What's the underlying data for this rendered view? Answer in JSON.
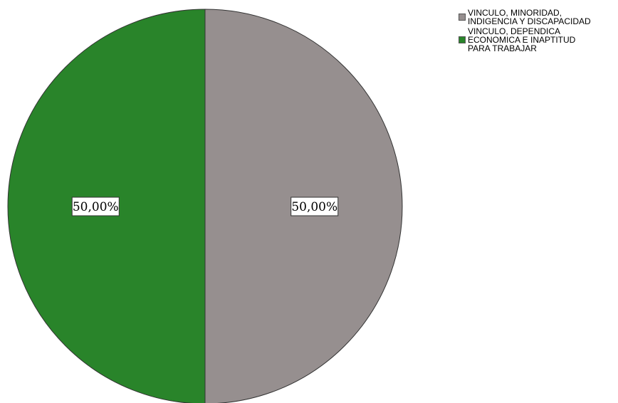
{
  "chart_data": {
    "type": "pie",
    "title": "",
    "slices": [
      {
        "label": "VINCULO, MINORIDAD,\nINDIGENCIA Y DISCAPACIDAD",
        "value": 50.0,
        "display": "50,00%",
        "color": "#968f8f"
      },
      {
        "label": "VINCULO, DEPENDICA\nECONOMICA E INAPTITUD\nPARA TRABAJAR",
        "value": 50.0,
        "display": "50,00%",
        "color": "#29842a"
      }
    ],
    "legend_position": "top-right",
    "start_angle_deg": 0,
    "direction": "clockwise"
  }
}
